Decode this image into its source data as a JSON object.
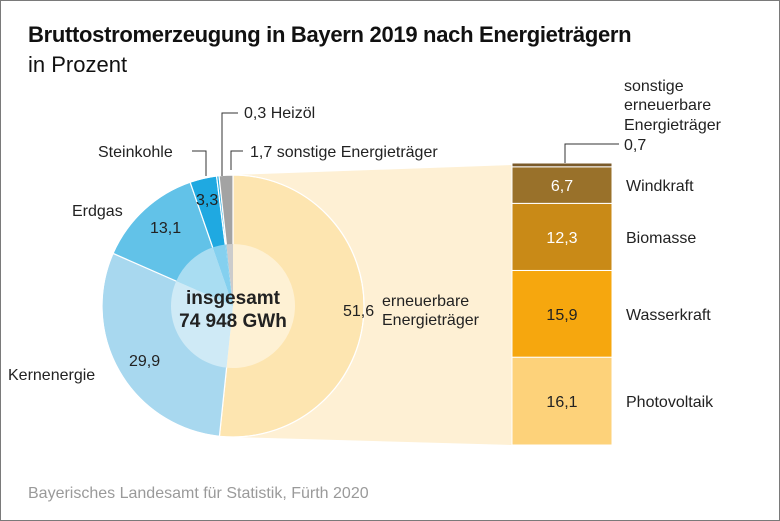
{
  "header": {
    "title": "Bruttostromerzeugung in Bayern 2019 nach Energieträgern",
    "subtitle": "in Prozent"
  },
  "footer": {
    "source": "Bayerisches Landesamt für Statistik, Fürth 2020"
  },
  "chart_data": [
    {
      "type": "pie",
      "title": "Bruttostromerzeugung in Bayern 2019 nach Energieträgern",
      "subtitle": "in Prozent",
      "center_label": [
        "insgesamt",
        "74 948 GWh"
      ],
      "slices": [
        {
          "name": "erneuerbare Energieträger",
          "label_lines": [
            "erneuerbare",
            "Energieträger"
          ],
          "value": 51.6,
          "value_label": "51,6",
          "color": "#fde5b0"
        },
        {
          "name": "Kernenergie",
          "value": 29.9,
          "value_label": "29,9",
          "color": "#a8d8ef"
        },
        {
          "name": "Erdgas",
          "value": 13.1,
          "value_label": "13,1",
          "color": "#62c2e8"
        },
        {
          "name": "Steinkohle",
          "value": 3.3,
          "value_label": "3,3",
          "color": "#1fa9e1"
        },
        {
          "name": "Heizöl",
          "value": 0.3,
          "value_label": "0,3 Heizöl",
          "color": "#1fa9e1"
        },
        {
          "name": "sonstige Energieträger",
          "value": 1.7,
          "value_label": "1,7 sonstige Energieträger",
          "color": "#a3a3a3"
        }
      ]
    },
    {
      "type": "bar",
      "stacked": true,
      "title": "erneuerbare Energieträger",
      "categories": [
        "Photovoltaik",
        "Wasserkraft",
        "Biomasse",
        "Windkraft",
        "sonstige erneuerbare Energieträger"
      ],
      "values": [
        16.1,
        15.9,
        12.3,
        6.7,
        0.7
      ],
      "value_labels": [
        "16,1",
        "15,9",
        "12,3",
        "6,7",
        "0,7"
      ],
      "colors": [
        "#fdd27a",
        "#f6a70e",
        "#c98a17",
        "#99712a",
        "#7a5a2a"
      ],
      "other_label_lines": [
        "sonstige",
        "erneuerbare",
        "Energieträger",
        "0,7"
      ]
    }
  ]
}
